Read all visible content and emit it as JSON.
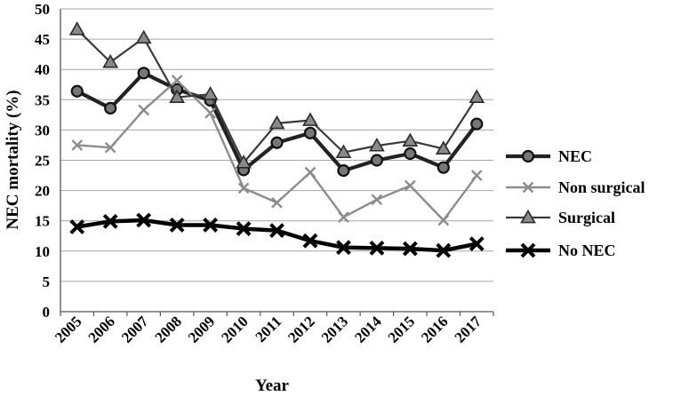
{
  "chart_data": {
    "type": "line",
    "title": "",
    "xlabel": "Year",
    "ylabel": "NEC mortality (%)",
    "categories": [
      "2005",
      "2006",
      "2007",
      "2008",
      "2009",
      "2010",
      "2011",
      "2012",
      "2013",
      "2014",
      "2015",
      "2016",
      "2017"
    ],
    "ylim": [
      0,
      50
    ],
    "yticks": [
      "0",
      "5",
      "10",
      "15",
      "20",
      "25",
      "30",
      "35",
      "40",
      "45",
      "50"
    ],
    "grid": "horizontal",
    "legend_position": "right",
    "series": [
      {
        "name": "NEC",
        "marker": "circle",
        "color": "#222222",
        "values": [
          36.4,
          33.6,
          39.4,
          36.7,
          34.9,
          23.4,
          27.9,
          29.5,
          23.3,
          25.0,
          26.1,
          23.8,
          31.0
        ]
      },
      {
        "name": "Non surgical",
        "marker": "x",
        "color": "#8c8c8c",
        "values": [
          27.5,
          27.1,
          33.3,
          38.2,
          32.8,
          20.4,
          18.0,
          23.0,
          15.6,
          18.5,
          20.8,
          15.1,
          22.5
        ]
      },
      {
        "name": "Surgical",
        "marker": "triangle",
        "color": "#3a3a3a",
        "values": [
          46.6,
          41.2,
          45.2,
          35.4,
          35.9,
          24.6,
          31.1,
          31.6,
          26.3,
          27.4,
          28.2,
          26.9,
          35.4
        ]
      },
      {
        "name": "No NEC",
        "marker": "bigx",
        "color": "#000000",
        "values": [
          14.0,
          14.9,
          15.1,
          14.3,
          14.3,
          13.7,
          13.4,
          11.7,
          10.6,
          10.5,
          10.4,
          10.1,
          11.2
        ]
      }
    ]
  }
}
